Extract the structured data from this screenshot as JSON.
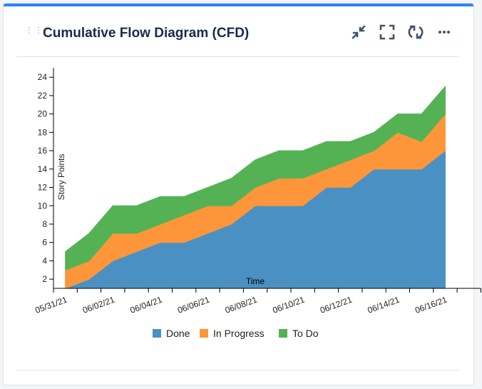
{
  "header": {
    "title": "Cumulative Flow Diagram (CFD)",
    "icons": [
      "minimize-icon",
      "fullscreen-icon",
      "refresh-icon",
      "more-icon"
    ]
  },
  "chart_data": {
    "type": "area",
    "stacked": true,
    "title": "",
    "xlabel": "Time",
    "ylabel": "Story Points",
    "x": [
      "05/31/21",
      "06/01/21",
      "06/02/21",
      "06/03/21",
      "06/04/21",
      "06/05/21",
      "06/06/21",
      "06/07/21",
      "06/08/21",
      "06/09/21",
      "06/10/21",
      "06/11/21",
      "06/12/21",
      "06/13/21",
      "06/14/21",
      "06/15/21",
      "06/16/21"
    ],
    "x_tick_labels": [
      "05/31/21",
      "06/02/21",
      "06/04/21",
      "06/06/21",
      "06/08/21",
      "06/10/21",
      "06/12/21",
      "06/14/21",
      "06/16/21"
    ],
    "y_ticks": [
      2,
      4,
      6,
      8,
      10,
      12,
      14,
      16,
      18,
      20,
      22,
      24
    ],
    "ylim": [
      1,
      25
    ],
    "grid": false,
    "legend_position": "bottom",
    "series": [
      {
        "name": "Done",
        "color": "#4a90c2",
        "values": [
          1,
          2,
          4,
          5,
          6,
          6,
          7,
          8,
          10,
          10,
          10,
          12,
          12,
          14,
          14,
          14,
          16
        ]
      },
      {
        "name": "In Progress",
        "color": "#fd963a",
        "values": [
          2,
          2,
          3,
          2,
          2,
          3,
          3,
          2,
          2,
          3,
          3,
          2,
          3,
          2,
          4,
          3,
          4
        ]
      },
      {
        "name": "To Do",
        "color": "#55b254",
        "values": [
          2,
          3,
          3,
          3,
          3,
          2,
          2,
          3,
          3,
          3,
          3,
          3,
          2,
          2,
          2,
          3,
          3
        ]
      }
    ]
  }
}
